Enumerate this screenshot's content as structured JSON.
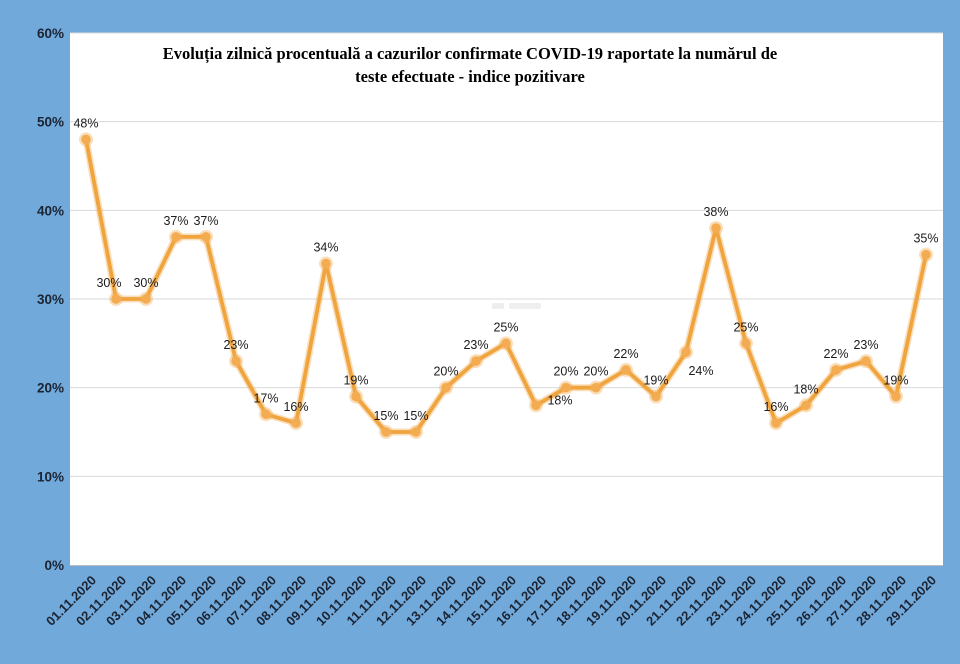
{
  "window": {
    "background_color": "#71A9DB",
    "plot_background": "#FFFFFF"
  },
  "chart_data": {
    "type": "line",
    "title_lines": [
      "Evoluția zilnică procentuală a cazurilor confirmate COVID-19 raportate la numărul de",
      "teste efectuate - indice pozitivare"
    ],
    "categories": [
      "01.11.2020",
      "02.11.2020",
      "03.11.2020",
      "04.11.2020",
      "05.11.2020",
      "06.11.2020",
      "07.11.2020",
      "08.11.2020",
      "09.11.2020",
      "10.11.2020",
      "11.11.2020",
      "12.11.2020",
      "13.11.2020",
      "14.11.2020",
      "15.11.2020",
      "16.11.2020",
      "17.11.2020",
      "18.11.2020",
      "19.11.2020",
      "20.11.2020",
      "21.11.2020",
      "22.11.2020",
      "23.11.2020",
      "24.11.2020",
      "25.11.2020",
      "26.11.2020",
      "27.11.2020",
      "28.11.2020",
      "29.11.2020"
    ],
    "values": [
      48,
      30,
      30,
      37,
      37,
      23,
      17,
      16,
      34,
      19,
      15,
      15,
      20,
      23,
      25,
      18,
      20,
      20,
      22,
      19,
      24,
      38,
      25,
      16,
      18,
      22,
      23,
      19,
      35
    ],
    "unit": "%",
    "ylim": [
      0,
      60
    ],
    "y_tick_values": [
      0,
      10,
      20,
      30,
      40,
      50,
      60
    ],
    "y_tick_labels": [
      "0%",
      "10%",
      "20%",
      "30%",
      "40%",
      "50%",
      "60%"
    ],
    "grid": true,
    "legend": "none",
    "line_color": "#F0A43E",
    "marker_color": "#F3AC52",
    "grid_color": "#D9D9D9",
    "point_label_color": "#1C1C1C",
    "axis_label_color": "#1B2433"
  }
}
